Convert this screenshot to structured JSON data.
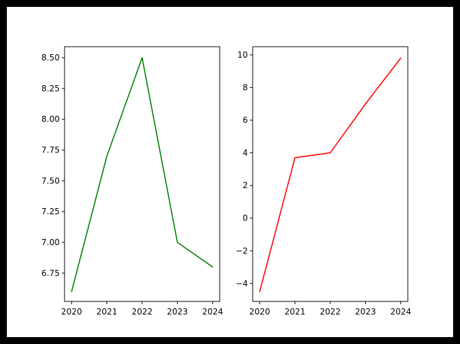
{
  "chart_data": [
    {
      "type": "line",
      "title": "",
      "xlabel": "",
      "ylabel": "",
      "x": [
        2020,
        2021,
        2022,
        2023,
        2024
      ],
      "x_tick_labels": [
        "2020",
        "2021",
        "2022",
        "2023",
        "2024"
      ],
      "series": [
        {
          "values": [
            6.6,
            7.7,
            8.5,
            7.0,
            6.8
          ],
          "color": "#008000"
        }
      ],
      "xlim": [
        2019.8,
        2024.2
      ],
      "ylim": [
        6.52,
        8.59
      ],
      "yticks": [
        6.75,
        7.0,
        7.25,
        7.5,
        7.75,
        8.0,
        8.25,
        8.5
      ],
      "y_tick_labels": [
        "6.75",
        "7.00",
        "7.25",
        "7.50",
        "7.75",
        "8.00",
        "8.25",
        "8.50"
      ],
      "grid": false,
      "legend": "none"
    },
    {
      "type": "line",
      "title": "",
      "xlabel": "",
      "ylabel": "",
      "x": [
        2020,
        2021,
        2022,
        2023,
        2024
      ],
      "x_tick_labels": [
        "2020",
        "2021",
        "2022",
        "2023",
        "2024"
      ],
      "series": [
        {
          "values": [
            -4.5,
            3.7,
            4.0,
            7.0,
            9.8
          ],
          "color": "#ff0000"
        }
      ],
      "xlim": [
        2019.8,
        2024.2
      ],
      "ylim": [
        -5.1,
        10.5
      ],
      "yticks": [
        -4,
        -2,
        0,
        2,
        4,
        6,
        8,
        10
      ],
      "y_tick_labels": [
        "−4",
        "−2",
        "0",
        "2",
        "4",
        "6",
        "8",
        "10"
      ],
      "grid": false,
      "legend": "none"
    }
  ]
}
